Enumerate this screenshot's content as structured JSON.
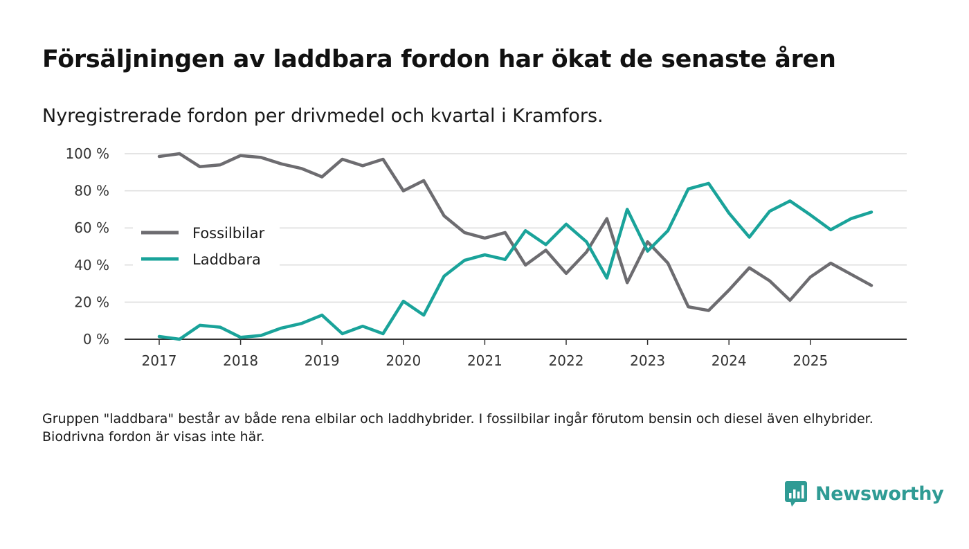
{
  "title": "Försäljningen av laddbara fordon har ökat de senaste åren",
  "subtitle": "Nyregistrerade fordon per drivmedel och kvartal i Kramfors.",
  "footnote": "Gruppen \"laddbara\" består av både rena elbilar och laddhybrider. I fossilbilar ingår förutom bensin och diesel även elhybrider. Biodrivna fordon är visas inte här.",
  "brand": {
    "name": "Newsworthy",
    "icon": "newsworthy-logo-icon",
    "color": "#2f9b94"
  },
  "chart_data": {
    "type": "line",
    "title": "Försäljningen av laddbara fordon har ökat de senaste åren",
    "xlabel": "",
    "ylabel": "",
    "x": [
      "2017-Q1",
      "2017-Q2",
      "2017-Q3",
      "2017-Q4",
      "2018-Q1",
      "2018-Q2",
      "2018-Q3",
      "2018-Q4",
      "2019-Q1",
      "2019-Q2",
      "2019-Q3",
      "2019-Q4",
      "2020-Q1",
      "2020-Q2",
      "2020-Q3",
      "2020-Q4",
      "2021-Q1",
      "2021-Q2",
      "2021-Q3",
      "2021-Q4",
      "2022-Q1",
      "2022-Q2",
      "2022-Q3",
      "2022-Q4",
      "2023-Q1",
      "2023-Q2",
      "2023-Q3",
      "2023-Q4",
      "2024-Q1",
      "2024-Q2",
      "2024-Q3",
      "2024-Q4",
      "2025-Q1",
      "2025-Q2",
      "2025-Q3",
      "2025-Q4"
    ],
    "x_tick_labels": [
      "2017",
      "2018",
      "2019",
      "2020",
      "2021",
      "2022",
      "2023",
      "2024",
      "2025"
    ],
    "y_tick_labels": [
      "0 %",
      "20 %",
      "40 %",
      "60 %",
      "80 %",
      "100 %"
    ],
    "y_ticks": [
      0,
      20,
      40,
      60,
      80,
      100
    ],
    "ylim": [
      0,
      100
    ],
    "grid": true,
    "legend_position": "left",
    "series": [
      {
        "name": "Fossilbilar",
        "color": "#6d6c70",
        "values": [
          98.5,
          100,
          93,
          94,
          99,
          98,
          94.5,
          92,
          87.5,
          97,
          93.5,
          97,
          80,
          85.5,
          66.5,
          57.5,
          54.5,
          57.5,
          40,
          48,
          35.5,
          47,
          65,
          30.5,
          52.5,
          41,
          17.5,
          15.5,
          26.5,
          38.5,
          31.5,
          21,
          33.5,
          41,
          35,
          29
        ]
      },
      {
        "name": "Laddbara",
        "color": "#1aa39a",
        "values": [
          1.5,
          0,
          7.5,
          6.5,
          1,
          2,
          6,
          8.5,
          13,
          3,
          7,
          3,
          20.5,
          13,
          34,
          42.5,
          45.5,
          43,
          58.5,
          51,
          62,
          52.5,
          33,
          70,
          47.5,
          58.5,
          81,
          84,
          68,
          55,
          69,
          74.5,
          67,
          59,
          65,
          68.5
        ]
      }
    ]
  }
}
